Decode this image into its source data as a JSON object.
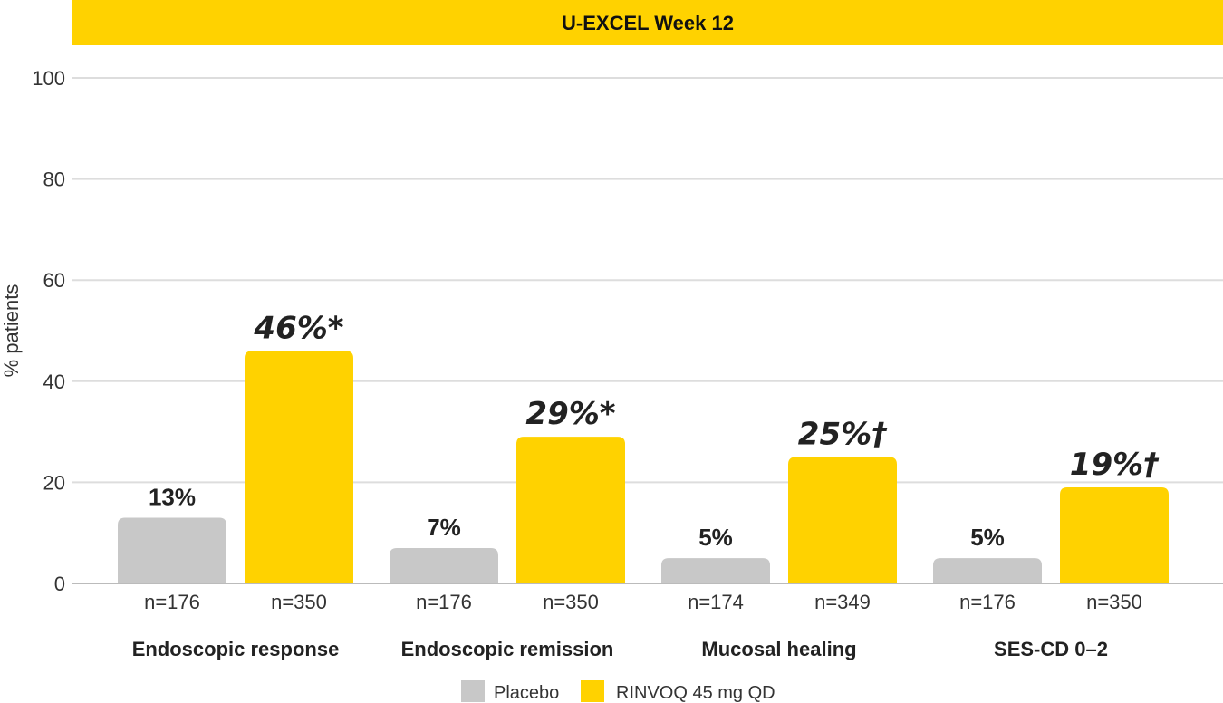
{
  "chart_data": {
    "type": "bar",
    "title": "U-EXCEL Week 12",
    "ylabel": "% patients",
    "xlabel": "",
    "ylim": [
      0,
      100
    ],
    "yticks": [
      0,
      20,
      40,
      60,
      80,
      100
    ],
    "grid": true,
    "legend_position": "bottom",
    "categories": [
      "Endoscopic response",
      "Endoscopic remission",
      "Mucosal healing",
      "SES-CD 0–2"
    ],
    "series": [
      {
        "name": "Placebo",
        "color": "#C8C8C8",
        "values": [
          13,
          7,
          5,
          5
        ],
        "labels": [
          "13%",
          "7%",
          "5%",
          "5%"
        ],
        "n": [
          "n=176",
          "n=176",
          "n=174",
          "n=176"
        ]
      },
      {
        "name": "RINVOQ 45 mg QD",
        "color": "#FFD200",
        "values": [
          46,
          29,
          25,
          19
        ],
        "labels": [
          "46%*",
          "29%*",
          "25%†",
          "19%†"
        ],
        "n": [
          "n=350",
          "n=350",
          "n=349",
          "n=350"
        ]
      }
    ]
  }
}
